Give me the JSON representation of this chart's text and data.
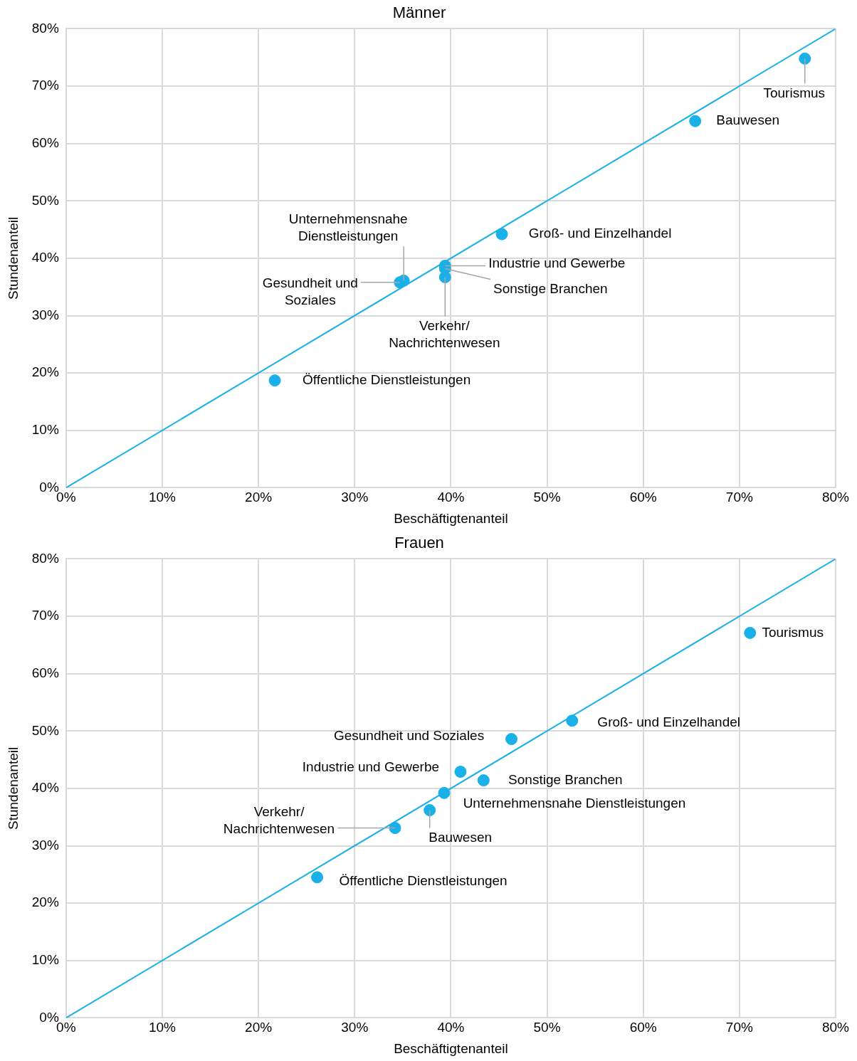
{
  "chart_data": [
    {
      "type": "scatter",
      "title": "Männer",
      "xlabel": "Beschäftigtenanteil",
      "ylabel": "Stundenanteil",
      "xlim": [
        0,
        80
      ],
      "ylim": [
        0,
        80
      ],
      "xticks": [
        {
          "value": 0,
          "label": "0%"
        },
        {
          "value": 10,
          "label": "10%"
        },
        {
          "value": 20,
          "label": "20%"
        },
        {
          "value": 30,
          "label": "30%"
        },
        {
          "value": 40,
          "label": "40%"
        },
        {
          "value": 50,
          "label": "50%"
        },
        {
          "value": 60,
          "label": "60%"
        },
        {
          "value": 70,
          "label": "70%"
        },
        {
          "value": 80,
          "label": "80%"
        }
      ],
      "yticks": [
        {
          "value": 0,
          "label": "0%"
        },
        {
          "value": 10,
          "label": "10%"
        },
        {
          "value": 20,
          "label": "20%"
        },
        {
          "value": 30,
          "label": "30%"
        },
        {
          "value": 40,
          "label": "40%"
        },
        {
          "value": 50,
          "label": "50%"
        },
        {
          "value": 60,
          "label": "60%"
        },
        {
          "value": 70,
          "label": "70%"
        },
        {
          "value": 80,
          "label": "80%"
        }
      ],
      "grid": true,
      "legend": false,
      "series": [
        {
          "marker": "circle",
          "color": "#1ab0e8",
          "x": [
            76.8,
            65.4,
            45.3,
            39.4,
            39.4,
            39.4,
            35.1,
            34.7,
            21.7
          ],
          "values": [
            74.8,
            63.9,
            44.2,
            38.7,
            38.2,
            36.7,
            36.1,
            35.8,
            18.7
          ]
        },
        {
          "type": "line",
          "color": "#1ab0e8",
          "x": [
            0,
            80
          ],
          "values": [
            0,
            80
          ]
        }
      ],
      "annotations": [
        {
          "text": "Tourismus",
          "x": 76.8,
          "y": 74.8
        },
        {
          "text": "Bauwesen",
          "x": 65.4,
          "y": 63.9
        },
        {
          "text": "Groß- und Einzelhandel",
          "x": 45.3,
          "y": 44.2
        },
        {
          "text": "Industrie und Gewerbe",
          "x": 39.4,
          "y": 38.7
        },
        {
          "text": "Sonstige Branchen",
          "x": 39.4,
          "y": 38.2
        },
        {
          "text": "Verkehr/ Nachrichtenwesen",
          "x": 39.4,
          "y": 36.7
        },
        {
          "text": "Unternehmensnahe Dienstleistungen",
          "x": 35.1,
          "y": 36.1
        },
        {
          "text": "Gesundheit und Soziales",
          "x": 34.7,
          "y": 35.8
        },
        {
          "text": "Öffentliche Dienstleistungen",
          "x": 21.7,
          "y": 18.7
        }
      ]
    },
    {
      "type": "scatter",
      "title": "Frauen",
      "xlabel": "Beschäftigtenanteil",
      "ylabel": "Stundenanteil",
      "xlim": [
        0,
        80
      ],
      "ylim": [
        0,
        80
      ],
      "xticks": [
        {
          "value": 0,
          "label": "0%"
        },
        {
          "value": 10,
          "label": "10%"
        },
        {
          "value": 20,
          "label": "20%"
        },
        {
          "value": 30,
          "label": "30%"
        },
        {
          "value": 40,
          "label": "40%"
        },
        {
          "value": 50,
          "label": "50%"
        },
        {
          "value": 60,
          "label": "60%"
        },
        {
          "value": 70,
          "label": "70%"
        },
        {
          "value": 80,
          "label": "80%"
        }
      ],
      "yticks": [
        {
          "value": 0,
          "label": "0%"
        },
        {
          "value": 10,
          "label": "10%"
        },
        {
          "value": 20,
          "label": "20%"
        },
        {
          "value": 30,
          "label": "30%"
        },
        {
          "value": 40,
          "label": "40%"
        },
        {
          "value": 50,
          "label": "50%"
        },
        {
          "value": 60,
          "label": "60%"
        },
        {
          "value": 70,
          "label": "70%"
        },
        {
          "value": 80,
          "label": "80%"
        }
      ],
      "grid": true,
      "legend": false,
      "series": [
        {
          "marker": "circle",
          "color": "#1ab0e8",
          "x": [
            71.1,
            52.6,
            46.3,
            41.0,
            43.4,
            39.3,
            37.8,
            34.2,
            26.1
          ],
          "values": [
            67.1,
            51.8,
            48.6,
            42.9,
            41.4,
            39.2,
            36.2,
            33.1,
            24.5
          ]
        },
        {
          "type": "line",
          "color": "#1ab0e8",
          "x": [
            0,
            80
          ],
          "values": [
            0,
            80
          ]
        }
      ],
      "annotations": [
        {
          "text": "Tourismus",
          "x": 71.1,
          "y": 67.1
        },
        {
          "text": "Groß- und Einzelhandel",
          "x": 52.6,
          "y": 51.8
        },
        {
          "text": "Gesundheit und Soziales",
          "x": 46.3,
          "y": 48.6
        },
        {
          "text": "Industrie und Gewerbe",
          "x": 41.0,
          "y": 42.9
        },
        {
          "text": "Sonstige Branchen",
          "x": 43.4,
          "y": 41.4
        },
        {
          "text": "Unternehmensnahe Dienstleistungen",
          "x": 39.3,
          "y": 39.2
        },
        {
          "text": "Bauwesen",
          "x": 37.8,
          "y": 36.2
        },
        {
          "text": "Verkehr/ Nachrichtenwesen",
          "x": 34.2,
          "y": 33.1
        },
        {
          "text": "Öffentliche Dienstleistungen",
          "x": 26.1,
          "y": 24.5
        }
      ]
    }
  ]
}
